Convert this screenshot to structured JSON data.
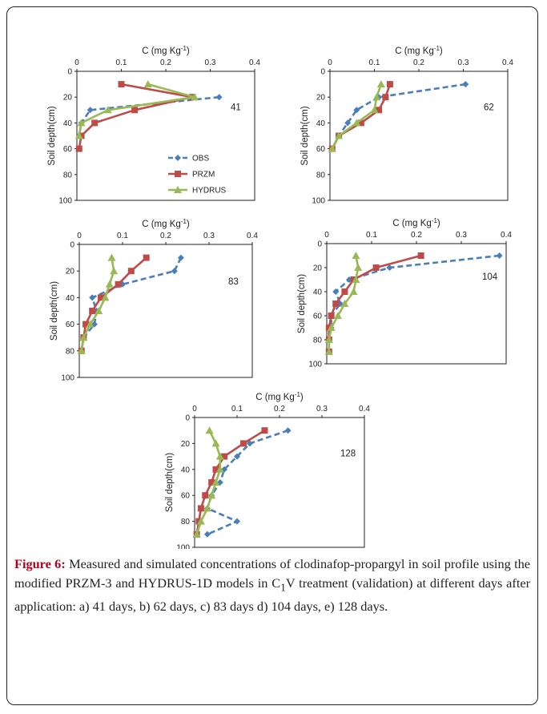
{
  "caption": {
    "label": "Figure 6:",
    "pre": " Measured and simulated concentrations of clodinafop-propargyl in soil profile using the modified PRZM-3 and HYDRUS-1D models in C",
    "sub": "1",
    "post": "V treatment (validation) at different days after application: a) 41 days, b) 62 days, c) 83 days d) 104 days, e) 128 days."
  },
  "colors": {
    "OBS": "#4a7ebb",
    "PRZM": "#be4b48",
    "HYDRUS": "#98b954"
  },
  "chart_data": [
    {
      "type": "line",
      "panel_label": "41",
      "xlabel": "C (mg Kg",
      "xlabel_sup": "-1",
      "xlabel_end": ")",
      "ylabel": "Soil depth(cm)",
      "xlim": [
        0,
        0.4
      ],
      "ylim": [
        100,
        0
      ],
      "xticks": [
        "0",
        "0.1",
        "0.2",
        "0.3",
        "0.4"
      ],
      "yticks": [
        "0",
        "20",
        "40",
        "60",
        "80",
        "100"
      ],
      "legend": [
        "OBS",
        "PRZM",
        "HYDRUS"
      ],
      "series": [
        {
          "name": "OBS",
          "points": [
            [
              0.32,
              20
            ],
            [
              0.03,
              30
            ],
            [
              0.01,
              40
            ],
            [
              0.005,
              50
            ]
          ]
        },
        {
          "name": "PRZM",
          "points": [
            [
              0.1,
              10
            ],
            [
              0.26,
              20
            ],
            [
              0.13,
              30
            ],
            [
              0.04,
              40
            ],
            [
              0.01,
              50
            ],
            [
              0.005,
              60
            ]
          ]
        },
        {
          "name": "HYDRUS",
          "points": [
            [
              0.16,
              10
            ],
            [
              0.265,
              20
            ],
            [
              0.07,
              30
            ],
            [
              0.01,
              40
            ],
            [
              0.005,
              50
            ]
          ]
        }
      ]
    },
    {
      "type": "line",
      "panel_label": "62",
      "xlabel": "C (mg Kg",
      "xlabel_sup": "-1",
      "xlabel_end": ")",
      "ylabel": "Soil depth(cm)",
      "xlim": [
        0,
        0.4
      ],
      "ylim": [
        100,
        0
      ],
      "xticks": [
        "0",
        "0.1",
        "0.2",
        "0.3",
        "0.4"
      ],
      "yticks": [
        "0",
        "20",
        "40",
        "60",
        "80",
        "100"
      ],
      "series": [
        {
          "name": "OBS",
          "points": [
            [
              0.305,
              10
            ],
            [
              0.11,
              20
            ],
            [
              0.06,
              30
            ],
            [
              0.04,
              40
            ],
            [
              0.02,
              50
            ],
            [
              0.005,
              60
            ]
          ]
        },
        {
          "name": "PRZM",
          "points": [
            [
              0.135,
              10
            ],
            [
              0.125,
              20
            ],
            [
              0.11,
              30
            ],
            [
              0.07,
              40
            ],
            [
              0.02,
              50
            ],
            [
              0.005,
              60
            ]
          ]
        },
        {
          "name": "HYDRUS",
          "points": [
            [
              0.115,
              10
            ],
            [
              0.105,
              20
            ],
            [
              0.1,
              30
            ],
            [
              0.06,
              40
            ],
            [
              0.02,
              50
            ],
            [
              0.005,
              60
            ]
          ]
        }
      ]
    },
    {
      "type": "line",
      "panel_label": "83",
      "xlabel": "C (mg Kg",
      "xlabel_sup": "-1",
      "xlabel_end": ")",
      "ylabel": "Soil depth(cm)",
      "xlim": [
        0,
        0.4
      ],
      "ylim": [
        100,
        0
      ],
      "xticks": [
        "0",
        "0.1",
        "0.2",
        "0.3",
        "0.4"
      ],
      "yticks": [
        "0",
        "20",
        "40",
        "60",
        "80",
        "100"
      ],
      "series": [
        {
          "name": "OBS",
          "points": [
            [
              0.235,
              10
            ],
            [
              0.22,
              20
            ],
            [
              0.1,
              30
            ],
            [
              0.03,
              40
            ],
            [
              0.04,
              50
            ],
            [
              0.035,
              60
            ],
            [
              0.01,
              70
            ],
            [
              0.005,
              80
            ]
          ]
        },
        {
          "name": "PRZM",
          "points": [
            [
              0.155,
              10
            ],
            [
              0.12,
              20
            ],
            [
              0.09,
              30
            ],
            [
              0.05,
              40
            ],
            [
              0.03,
              50
            ],
            [
              0.015,
              60
            ],
            [
              0.01,
              70
            ],
            [
              0.005,
              80
            ]
          ]
        },
        {
          "name": "HYDRUS",
          "points": [
            [
              0.075,
              10
            ],
            [
              0.08,
              20
            ],
            [
              0.07,
              30
            ],
            [
              0.06,
              40
            ],
            [
              0.045,
              50
            ],
            [
              0.025,
              60
            ],
            [
              0.01,
              70
            ],
            [
              0.005,
              80
            ]
          ]
        }
      ]
    },
    {
      "type": "line",
      "panel_label": "104",
      "xlabel": "C (mg Kg",
      "xlabel_sup": "-1",
      "xlabel_end": ")",
      "ylabel": "Soil depth(cm)",
      "xlim": [
        0,
        0.4
      ],
      "ylim": [
        100,
        0
      ],
      "xticks": [
        "0",
        "0.1",
        "0.2",
        "0.3",
        "0.4"
      ],
      "yticks": [
        "0",
        "20",
        "40",
        "60",
        "80",
        "100"
      ],
      "series": [
        {
          "name": "OBS",
          "points": [
            [
              0.385,
              10
            ],
            [
              0.14,
              20
            ],
            [
              0.05,
              30
            ],
            [
              0.02,
              40
            ],
            [
              0.03,
              50
            ],
            [
              0.01,
              60
            ],
            [
              0.01,
              70
            ],
            [
              0.005,
              80
            ],
            [
              0.005,
              90
            ]
          ]
        },
        {
          "name": "PRZM",
          "points": [
            [
              0.21,
              10
            ],
            [
              0.11,
              20
            ],
            [
              0.06,
              30
            ],
            [
              0.04,
              40
            ],
            [
              0.02,
              50
            ],
            [
              0.01,
              60
            ],
            [
              0.005,
              70
            ],
            [
              0.005,
              80
            ],
            [
              0.005,
              90
            ]
          ]
        },
        {
          "name": "HYDRUS",
          "points": [
            [
              0.065,
              10
            ],
            [
              0.07,
              20
            ],
            [
              0.065,
              30
            ],
            [
              0.06,
              40
            ],
            [
              0.04,
              50
            ],
            [
              0.025,
              60
            ],
            [
              0.01,
              70
            ],
            [
              0.005,
              80
            ],
            [
              0.005,
              90
            ]
          ]
        }
      ]
    },
    {
      "type": "line",
      "panel_label": "128",
      "xlabel": "C (mg Kg",
      "xlabel_sup": "-1",
      "xlabel_end": ")",
      "ylabel": "Soil depth(cm)",
      "xlim": [
        0,
        0.4
      ],
      "ylim": [
        100,
        0
      ],
      "xticks": [
        "0",
        "0.1",
        "0.2",
        "0.3",
        "0.4"
      ],
      "yticks": [
        "0",
        "20",
        "40",
        "60",
        "80",
        "100"
      ],
      "series": [
        {
          "name": "OBS",
          "points": [
            [
              0.22,
              10
            ],
            [
              0.13,
              20
            ],
            [
              0.1,
              30
            ],
            [
              0.07,
              40
            ],
            [
              0.06,
              50
            ],
            [
              0.04,
              60
            ],
            [
              0.03,
              70
            ],
            [
              0.1,
              80
            ],
            [
              0.03,
              90
            ]
          ]
        },
        {
          "name": "PRZM",
          "points": [
            [
              0.165,
              10
            ],
            [
              0.115,
              20
            ],
            [
              0.07,
              30
            ],
            [
              0.05,
              40
            ],
            [
              0.04,
              50
            ],
            [
              0.025,
              60
            ],
            [
              0.015,
              70
            ],
            [
              0.01,
              80
            ],
            [
              0.005,
              90
            ]
          ]
        },
        {
          "name": "HYDRUS",
          "points": [
            [
              0.035,
              10
            ],
            [
              0.05,
              20
            ],
            [
              0.06,
              30
            ],
            [
              0.06,
              40
            ],
            [
              0.05,
              50
            ],
            [
              0.04,
              60
            ],
            [
              0.03,
              70
            ],
            [
              0.015,
              80
            ],
            [
              0.005,
              90
            ]
          ]
        }
      ]
    }
  ]
}
